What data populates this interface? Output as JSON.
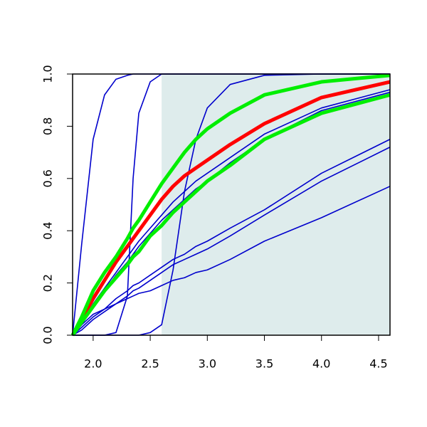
{
  "chart_data": {
    "type": "line",
    "x": [
      1.82,
      1.9,
      2.0,
      2.1,
      2.2,
      2.3,
      2.35,
      2.4,
      2.5,
      2.6,
      2.7,
      2.8,
      2.9,
      3.0,
      3.2,
      3.5,
      4.0,
      4.6
    ],
    "series": [
      {
        "color": "#0000cc",
        "values": [
          0,
          0.35,
          0.75,
          0.92,
          0.98,
          0.995,
          1,
          1,
          1,
          1,
          1,
          1,
          1,
          1,
          1,
          1,
          1,
          1
        ]
      },
      {
        "color": "#0000cc",
        "values": [
          0,
          0,
          0,
          0,
          0.01,
          0.15,
          0.6,
          0.85,
          0.97,
          1,
          1,
          1,
          1,
          1,
          1,
          1,
          1,
          1
        ]
      },
      {
        "color": "#0000cc",
        "values": [
          0,
          0,
          0,
          0,
          0,
          0,
          0,
          0,
          0.01,
          0.04,
          0.25,
          0.55,
          0.75,
          0.87,
          0.96,
          0.995,
          1,
          1
        ]
      },
      {
        "color": "#0000cc",
        "values": [
          0,
          0.05,
          0.12,
          0.18,
          0.24,
          0.3,
          0.33,
          0.36,
          0.41,
          0.46,
          0.51,
          0.55,
          0.59,
          0.62,
          0.68,
          0.77,
          0.87,
          0.94
        ]
      },
      {
        "color": "#0000cc",
        "values": [
          0,
          0.04,
          0.11,
          0.17,
          0.23,
          0.28,
          0.31,
          0.34,
          0.39,
          0.44,
          0.48,
          0.52,
          0.56,
          0.59,
          0.66,
          0.75,
          0.86,
          0.93
        ]
      },
      {
        "color": "#0000cc",
        "values": [
          0,
          0.03,
          0.07,
          0.1,
          0.14,
          0.17,
          0.19,
          0.2,
          0.23,
          0.26,
          0.29,
          0.31,
          0.34,
          0.36,
          0.41,
          0.48,
          0.62,
          0.75
        ]
      },
      {
        "color": "#0000cc",
        "values": [
          0,
          0.02,
          0.06,
          0.09,
          0.12,
          0.15,
          0.17,
          0.18,
          0.21,
          0.24,
          0.27,
          0.29,
          0.31,
          0.33,
          0.38,
          0.46,
          0.59,
          0.72
        ]
      },
      {
        "color": "#0000cc",
        "values": [
          0,
          0.04,
          0.08,
          0.1,
          0.12,
          0.14,
          0.15,
          0.16,
          0.17,
          0.19,
          0.21,
          0.22,
          0.24,
          0.25,
          0.29,
          0.36,
          0.45,
          0.57
        ]
      },
      {
        "color": "#ff0000",
        "values": [
          0,
          0.06,
          0.14,
          0.21,
          0.28,
          0.34,
          0.37,
          0.4,
          0.46,
          0.52,
          0.57,
          0.61,
          0.64,
          0.67,
          0.73,
          0.81,
          0.91,
          0.97
        ]
      },
      {
        "color": "#00ee00",
        "values": [
          0,
          0.07,
          0.17,
          0.24,
          0.3,
          0.37,
          0.41,
          0.44,
          0.51,
          0.58,
          0.64,
          0.7,
          0.75,
          0.79,
          0.85,
          0.92,
          0.97,
          0.995
        ]
      },
      {
        "color": "#00ee00",
        "values": [
          0,
          0.05,
          0.11,
          0.17,
          0.22,
          0.27,
          0.3,
          0.32,
          0.38,
          0.42,
          0.47,
          0.51,
          0.55,
          0.59,
          0.65,
          0.75,
          0.85,
          0.92
        ]
      }
    ],
    "shade": [
      2.6,
      4.6
    ],
    "shade_color": "#deecec",
    "xlim": [
      1.82,
      4.6
    ],
    "ylim": [
      0,
      1
    ],
    "xticks": [
      {
        "value": 2,
        "label": "2.0"
      },
      {
        "value": 2.5,
        "label": "2.5"
      },
      {
        "value": 3,
        "label": "3.0"
      },
      {
        "value": 3.5,
        "label": "3.5"
      },
      {
        "value": 4,
        "label": "4.0"
      },
      {
        "value": 4.5,
        "label": "4.5"
      }
    ],
    "yticks": [
      {
        "value": 0,
        "label": "0.0"
      },
      {
        "value": 0.2,
        "label": "0.2"
      },
      {
        "value": 0.4,
        "label": "0.4"
      },
      {
        "value": 0.6,
        "label": "0.6"
      },
      {
        "value": 0.8,
        "label": "0.8"
      },
      {
        "value": 1,
        "label": "1.0"
      }
    ]
  }
}
